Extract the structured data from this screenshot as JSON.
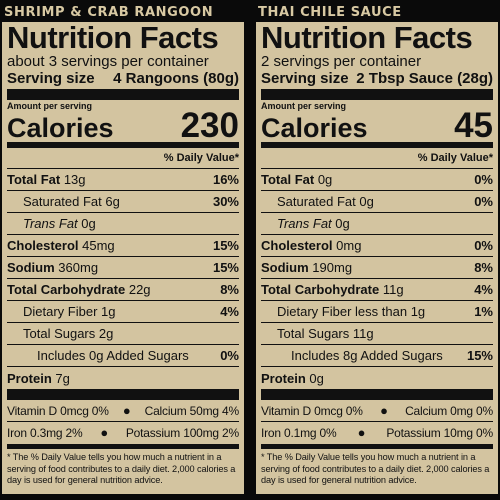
{
  "panels": [
    {
      "product": "SHRIMP & CRAB RANGOON",
      "title": "Nutrition Facts",
      "servings": "about 3 servings per container",
      "serving_size_label": "Serving size",
      "serving_size_value": "4 Rangoons (80g)",
      "amount_per_serving": "Amount per serving",
      "calories_label": "Calories",
      "calories_value": "230",
      "dv_header": "% Daily Value*",
      "total_fat": {
        "name": "Total Fat",
        "amount": "13g",
        "dv": "16%"
      },
      "saturated_fat": {
        "name": "Saturated Fat",
        "amount": "6g",
        "dv": "30%"
      },
      "trans_fat": {
        "name": "Trans Fat",
        "amount": "0g"
      },
      "cholesterol": {
        "name": "Cholesterol",
        "amount": "45mg",
        "dv": "15%"
      },
      "sodium": {
        "name": "Sodium",
        "amount": "360mg",
        "dv": "15%"
      },
      "total_carb": {
        "name": "Total Carbohydrate",
        "amount": "22g",
        "dv": "8%"
      },
      "fiber": {
        "name": "Dietary Fiber",
        "amount": "1g",
        "dv": "4%"
      },
      "total_sugars": {
        "name": "Total Sugars",
        "amount": "2g"
      },
      "added_sugars": {
        "name": "Includes 0g Added Sugars",
        "dv": "0%"
      },
      "protein": {
        "name": "Protein",
        "amount": "7g"
      },
      "micro1_left": "Vitamin D 0mcg 0%",
      "micro1_right": "Calcium 50mg 4%",
      "micro2_left": "Iron 0.3mg 2%",
      "micro2_right": "Potassium 100mg 2%",
      "footnote": "* The % Daily Value tells you how much a nutrient in a serving of food contributes to a daily diet. 2,000 calories a day is used for general nutrition advice."
    },
    {
      "product": "THAI CHILE SAUCE",
      "title": "Nutrition Facts",
      "servings": "2 servings per container",
      "serving_size_label": "Serving size",
      "serving_size_value": "2 Tbsp Sauce (28g)",
      "amount_per_serving": "Amount per serving",
      "calories_label": "Calories",
      "calories_value": "45",
      "dv_header": "% Daily Value*",
      "total_fat": {
        "name": "Total Fat",
        "amount": "0g",
        "dv": "0%"
      },
      "saturated_fat": {
        "name": "Saturated Fat",
        "amount": "0g",
        "dv": "0%"
      },
      "trans_fat": {
        "name": "Trans Fat",
        "amount": "0g"
      },
      "cholesterol": {
        "name": "Cholesterol",
        "amount": "0mg",
        "dv": "0%"
      },
      "sodium": {
        "name": "Sodium",
        "amount": "190mg",
        "dv": "8%"
      },
      "total_carb": {
        "name": "Total Carbohydrate",
        "amount": "11g",
        "dv": "4%"
      },
      "fiber": {
        "name": "Dietary Fiber",
        "amount": "less than 1g",
        "dv": "1%"
      },
      "total_sugars": {
        "name": "Total Sugars",
        "amount": "11g"
      },
      "added_sugars": {
        "name": "Includes 8g Added Sugars",
        "dv": "15%"
      },
      "protein": {
        "name": "Protein",
        "amount": "0g"
      },
      "micro1_left": "Vitamin D 0mcg 0%",
      "micro1_right": "Calcium 0mg 0%",
      "micro2_left": "Iron 0.1mg 0%",
      "micro2_right": "Potassium 10mg 0%",
      "footnote": "* The % Daily Value tells you how much a nutrient in a serving of food contributes to a daily diet. 2,000 calories a day is used for general nutrition advice."
    }
  ],
  "colors": {
    "background": "#0a0a0a",
    "label": "#d3c4a0",
    "product_text": "#d8c9a3"
  }
}
